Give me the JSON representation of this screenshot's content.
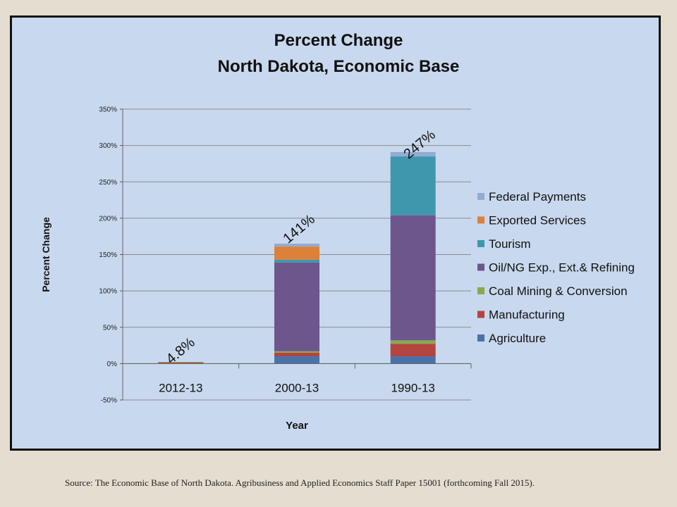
{
  "footer": {
    "source": "Source:  The Economic Base of North Dakota. Agribusiness and Applied Economics Staff Paper 15001 (forthcoming Fall 2015)."
  },
  "chart_data": {
    "type": "bar",
    "stacked": true,
    "title": [
      "Percent Change",
      "North Dakota, Economic Base"
    ],
    "xlabel": "Year",
    "ylabel": "Percent Change",
    "categories": [
      "2012-13",
      "2000-13",
      "1990-13"
    ],
    "ylim": [
      -50,
      350
    ],
    "yticks": [
      -50,
      0,
      50,
      100,
      150,
      200,
      250,
      300,
      350
    ],
    "ytick_labels": [
      "-50%",
      "0%",
      "50%",
      "100%",
      "150%",
      "200%",
      "250%",
      "300%",
      "350%"
    ],
    "grid": true,
    "legend_position": "right",
    "series": [
      {
        "name": "Agriculture",
        "color": "#4a72aa",
        "values": [
          0.5,
          10,
          10
        ]
      },
      {
        "name": "Manufacturing",
        "color": "#b3443f",
        "values": [
          1.5,
          5,
          17
        ]
      },
      {
        "name": "Coal Mining & Conversion",
        "color": "#8aa84f",
        "values": [
          0.3,
          2,
          5
        ]
      },
      {
        "name": "Oil/NG Exp., Ext.& Refining",
        "color": "#6d568c",
        "values": [
          0,
          122,
          172
        ]
      },
      {
        "name": "Tourism",
        "color": "#3f97ad",
        "values": [
          0,
          4,
          81
        ]
      },
      {
        "name": "Exported Services",
        "color": "#de8138",
        "values": [
          0,
          18,
          0
        ]
      },
      {
        "name": "Federal Payments",
        "color": "#94acd3",
        "values": [
          0,
          4,
          6
        ]
      }
    ],
    "annotations": [
      "4.8%",
      "141%",
      "247%"
    ]
  }
}
